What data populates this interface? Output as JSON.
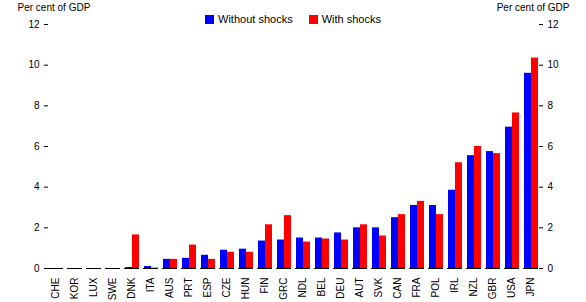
{
  "chart_data": {
    "type": "bar",
    "ylabel": "Per cent of GDP",
    "y2label": "Per cent of GDP",
    "categories": [
      "CHE",
      "KOR",
      "LUX",
      "SWE",
      "DNK",
      "ITA",
      "AUS",
      "PRT",
      "ESP",
      "CZE",
      "HUN",
      "FIN",
      "GRC",
      "NDL",
      "BEL",
      "DEU",
      "AUT",
      "SVK",
      "CAN",
      "FRA",
      "POL",
      "IRL",
      "NZL",
      "GBR",
      "USA",
      "JPN"
    ],
    "series": [
      {
        "name": "Without shocks",
        "color": "#0000ff",
        "values": [
          0,
          0,
          0,
          0,
          0.05,
          0.1,
          0.45,
          0.5,
          0.65,
          0.9,
          0.95,
          1.35,
          1.4,
          1.5,
          1.5,
          1.75,
          2.0,
          2.0,
          2.5,
          3.1,
          3.1,
          3.85,
          5.55,
          5.75,
          6.95,
          9.6
        ]
      },
      {
        "name": "With shocks",
        "color": "#ff0000",
        "values": [
          0,
          0,
          0,
          0,
          1.65,
          0.02,
          0.45,
          1.15,
          0.45,
          0.8,
          0.8,
          2.15,
          2.6,
          1.3,
          1.45,
          1.4,
          2.15,
          1.6,
          2.65,
          3.3,
          2.65,
          5.2,
          6.0,
          5.65,
          7.65,
          10.35
        ]
      }
    ],
    "ylim": [
      0,
      12
    ],
    "yticks": [
      0,
      2,
      4,
      6,
      8,
      10,
      12
    ],
    "y2lim": [
      0,
      12
    ],
    "y2ticks": [
      0,
      2,
      4,
      6,
      8,
      10,
      12
    ],
    "legend": "top",
    "grid": false
  }
}
